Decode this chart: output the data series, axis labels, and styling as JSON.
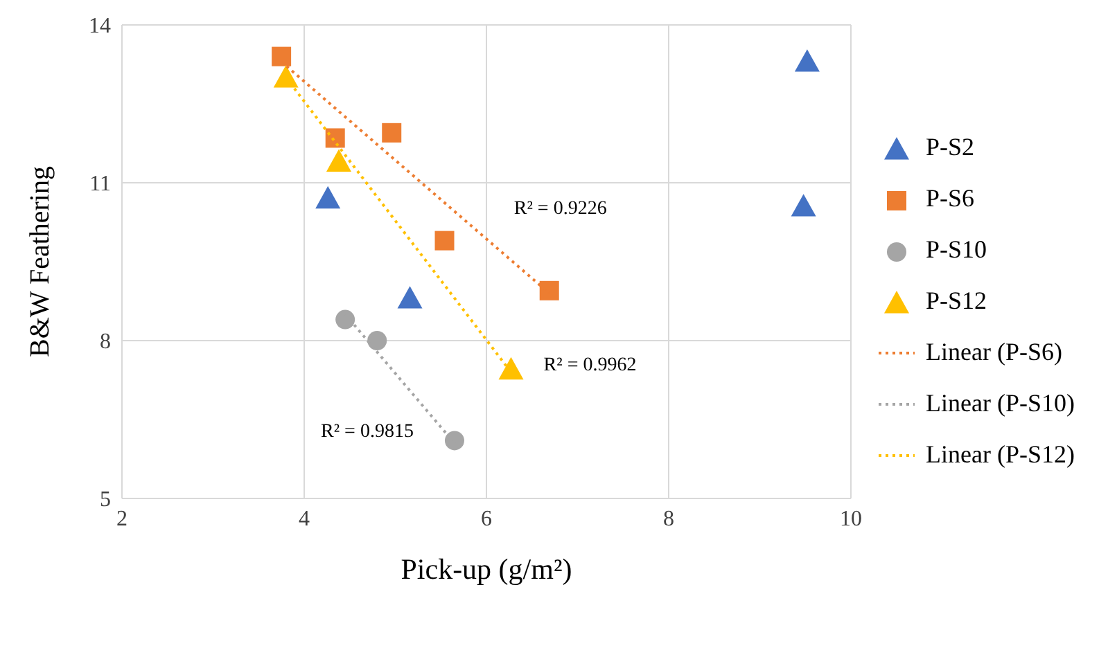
{
  "chart_data": {
    "type": "scatter",
    "xlabel": "Pick-up (g/m²)",
    "ylabel": "B&W Feathering",
    "xlim": [
      2,
      10
    ],
    "xticks": [
      2,
      4,
      6,
      8,
      10
    ],
    "ylim": [
      5,
      14
    ],
    "yticks": [
      5,
      8,
      11,
      14
    ],
    "grid": true,
    "legend": "right",
    "series": [
      {
        "name": "P-S2",
        "color": "#4472c4",
        "marker": "triangle",
        "x": [
          9.52,
          4.26,
          5.16,
          9.48
        ],
        "values": [
          13.3,
          10.7,
          8.8,
          10.55
        ]
      },
      {
        "name": "P-S6",
        "color": "#ed7d31",
        "marker": "square",
        "x": [
          3.75,
          4.34,
          4.96,
          5.54,
          6.69
        ],
        "values": [
          13.4,
          11.85,
          11.95,
          9.9,
          8.95
        ]
      },
      {
        "name": "P-S10",
        "color": "#a5a5a5",
        "marker": "circle",
        "x": [
          4.45,
          4.8,
          5.65
        ],
        "values": [
          8.4,
          8.0,
          6.1
        ]
      },
      {
        "name": "P-S12",
        "color": "#ffc000",
        "marker": "triangle",
        "x": [
          3.8,
          4.38,
          6.27
        ],
        "values": [
          13.0,
          11.4,
          7.45
        ]
      },
      {
        "name": "Linear (P-S6)",
        "type": "line",
        "color": "#ed7d31",
        "line_style": "dotted",
        "marker": "none",
        "x": [
          3.75,
          6.69
        ],
        "values": [
          13.3,
          8.9
        ]
      },
      {
        "name": "Linear (P-S10)",
        "type": "line",
        "color": "#a5a5a5",
        "line_style": "dotted",
        "marker": "none",
        "x": [
          4.45,
          5.65
        ],
        "values": [
          8.5,
          6.05
        ]
      },
      {
        "name": "Linear (P-S12)",
        "type": "line",
        "color": "#ffc000",
        "line_style": "dotted",
        "marker": "none",
        "x": [
          3.8,
          6.27
        ],
        "values": [
          13.0,
          7.4
        ]
      }
    ],
    "annotations": [
      "R² = 0.9226",
      "R² = 0.9815",
      "R² = 0.9962"
    ]
  }
}
